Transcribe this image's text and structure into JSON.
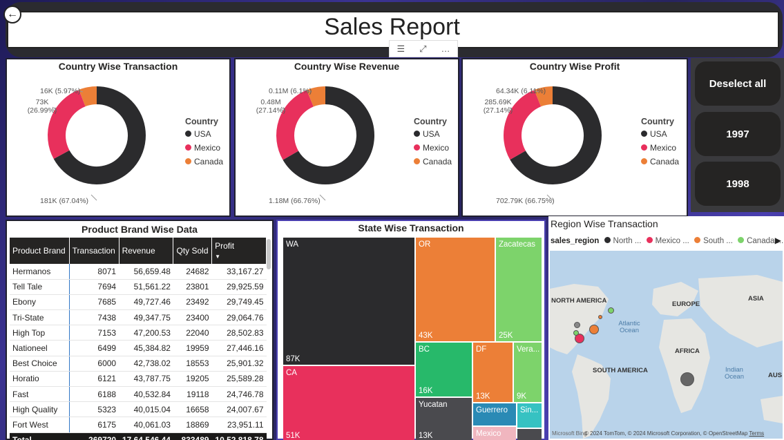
{
  "header": {
    "title": "Sales Report",
    "back_icon": "←"
  },
  "toolbar": {
    "filter_icon": "☰",
    "focus_icon": "⤢",
    "more_icon": "…"
  },
  "colors": {
    "usa": "#2b2b2d",
    "mexico": "#e8305c",
    "canada": "#ec7f37"
  },
  "donuts": [
    {
      "title": "Country Wise Transaction",
      "legend_title": "Country",
      "legend": [
        "USA",
        "Mexico",
        "Canada"
      ],
      "labels": {
        "usa": "181K (67.04%)",
        "mexico_line1": "73K",
        "mexico_line2": "(26.99%)",
        "canada": "16K (5.97%)"
      }
    },
    {
      "title": "Country Wise Revenue",
      "legend_title": "Country",
      "legend": [
        "USA",
        "Mexico",
        "Canada"
      ],
      "labels": {
        "usa": "1.18M (66.76%)",
        "mexico_line1": "0.48M",
        "mexico_line2": "(27.14%)",
        "canada": "0.11M (6.1%)"
      }
    },
    {
      "title": "Country Wise Profit",
      "legend_title": "Country",
      "legend": [
        "USA",
        "Mexico",
        "Canada"
      ],
      "labels": {
        "usa": "702.79K (66.75%)",
        "mexico_line1": "285.69K",
        "mexico_line2": "(27.14%)",
        "canada": "64.34K (6.11%)"
      }
    }
  ],
  "chart_data": [
    {
      "type": "pie",
      "title": "Country Wise Transaction",
      "categories": [
        "USA",
        "Mexico",
        "Canada"
      ],
      "values": [
        181000,
        73000,
        16000
      ],
      "percents": [
        67.04,
        26.99,
        5.97
      ]
    },
    {
      "type": "pie",
      "title": "Country Wise Revenue",
      "categories": [
        "USA",
        "Mexico",
        "Canada"
      ],
      "values": [
        1180000,
        480000,
        110000
      ],
      "percents": [
        66.76,
        27.14,
        6.1
      ]
    },
    {
      "type": "pie",
      "title": "Country Wise Profit",
      "categories": [
        "USA",
        "Mexico",
        "Canada"
      ],
      "values": [
        702790,
        285690,
        64340
      ],
      "percents": [
        66.75,
        27.14,
        6.11
      ]
    },
    {
      "type": "treemap",
      "title": "State Wise Transaction",
      "categories": [
        "WA",
        "CA",
        "OR",
        "Zacatecas",
        "BC",
        "DF",
        "Veracruz",
        "Yucatan",
        "Guerrero",
        "Sinaloa",
        "Mexico"
      ],
      "values": [
        87000,
        51000,
        43000,
        25000,
        16000,
        13000,
        9000,
        13000,
        6000,
        4000,
        3000
      ]
    }
  ],
  "slicer": {
    "deselect": "Deselect all",
    "options": [
      "1997",
      "1998"
    ]
  },
  "brand_table": {
    "title": "Product Brand Wise Data",
    "columns": [
      "Product Brand",
      "Transaction",
      "Revenue",
      "Qty Sold",
      "Profit"
    ],
    "sort_icon": "▼",
    "rows": [
      [
        "Hermanos",
        "8071",
        "56,659.48",
        "24682",
        "33,167.27"
      ],
      [
        "Tell Tale",
        "7694",
        "51,561.22",
        "23801",
        "29,925.59"
      ],
      [
        "Ebony",
        "7685",
        "49,727.46",
        "23492",
        "29,749.45"
      ],
      [
        "Tri-State",
        "7438",
        "49,347.75",
        "23400",
        "29,064.76"
      ],
      [
        "High Top",
        "7153",
        "47,200.53",
        "22040",
        "28,502.83"
      ],
      [
        "Nationeel",
        "6499",
        "45,384.82",
        "19959",
        "27,446.16"
      ],
      [
        "Best Choice",
        "6000",
        "42,738.02",
        "18553",
        "25,901.32"
      ],
      [
        "Horatio",
        "6121",
        "43,787.75",
        "19205",
        "25,589.28"
      ],
      [
        "Fast",
        "6188",
        "40,532.84",
        "19118",
        "24,746.78"
      ],
      [
        "High Quality",
        "5323",
        "40,015.04",
        "16658",
        "24,007.67"
      ],
      [
        "Fort West",
        "6175",
        "40,061.03",
        "18869",
        "23,951.11"
      ]
    ],
    "total": [
      "Total",
      "269720",
      "17,64,546.44",
      "833489",
      "10,52,818.78"
    ]
  },
  "treemap": {
    "title": "State Wise Transaction",
    "cells": [
      {
        "name": "WA",
        "value": "87K"
      },
      {
        "name": "CA",
        "value": "51K"
      },
      {
        "name": "OR",
        "value": "43K"
      },
      {
        "name": "Zacatecas",
        "value": "25K"
      },
      {
        "name": "BC",
        "value": "16K"
      },
      {
        "name": "DF",
        "value": "13K"
      },
      {
        "name": "Vera...",
        "value": "9K"
      },
      {
        "name": "Yucatan",
        "value": "13K"
      },
      {
        "name": "Guerrero",
        "value": ""
      },
      {
        "name": "Sin...",
        "value": ""
      },
      {
        "name": "Mexico",
        "value": ""
      }
    ]
  },
  "map": {
    "title": "Region Wise Transaction",
    "legend_title": "sales_region",
    "legend": [
      {
        "label": "North ...",
        "color": "#2b2b2d"
      },
      {
        "label": "Mexico ...",
        "color": "#e8305c"
      },
      {
        "label": "South ...",
        "color": "#ec7f37"
      },
      {
        "label": "Canada ...",
        "color": "#7dd36b"
      }
    ],
    "next_icon": "▶",
    "continents": [
      "NORTH AMERICA",
      "EUROPE",
      "ASIA",
      "AFRICA",
      "SOUTH AMERICA",
      "AUS"
    ],
    "oceans": [
      "Atlantic Ocean",
      "Indian Ocean"
    ],
    "attribution": "© 2024 TomTom, © 2024 Microsoft Corporation, © OpenStreetMap",
    "terms": "Terms",
    "brand": "Microsoft Bing"
  }
}
